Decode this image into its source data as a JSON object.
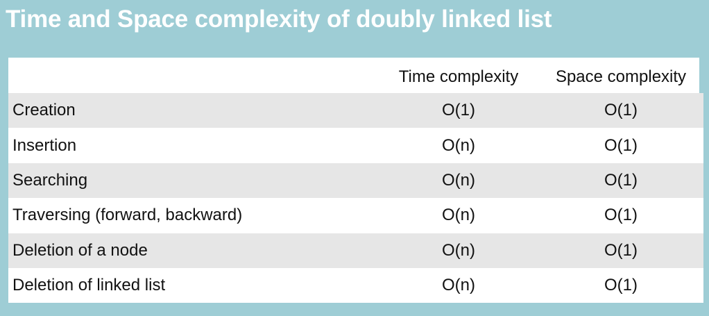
{
  "title": "Time and Space complexity of doubly linked list",
  "table": {
    "headers": [
      "",
      "Time complexity",
      "Space complexity"
    ],
    "rows": [
      {
        "operation": "Creation",
        "time": "O(1)",
        "space": "O(1)"
      },
      {
        "operation": "Insertion",
        "time": "O(n)",
        "space": "O(1)"
      },
      {
        "operation": "Searching",
        "time": "O(n)",
        "space": "O(1)"
      },
      {
        "operation": "Traversing (forward, backward)",
        "time": "O(n)",
        "space": "O(1)"
      },
      {
        "operation": "Deletion of a node",
        "time": "O(n)",
        "space": "O(1)"
      },
      {
        "operation": "Deletion of linked list",
        "time": "O(n)",
        "space": "O(1)"
      }
    ]
  },
  "colors": {
    "background": "#9ecdd5",
    "title_text": "#ffffff",
    "row_stripe": "#e6e6e6",
    "row_plain": "#ffffff"
  }
}
